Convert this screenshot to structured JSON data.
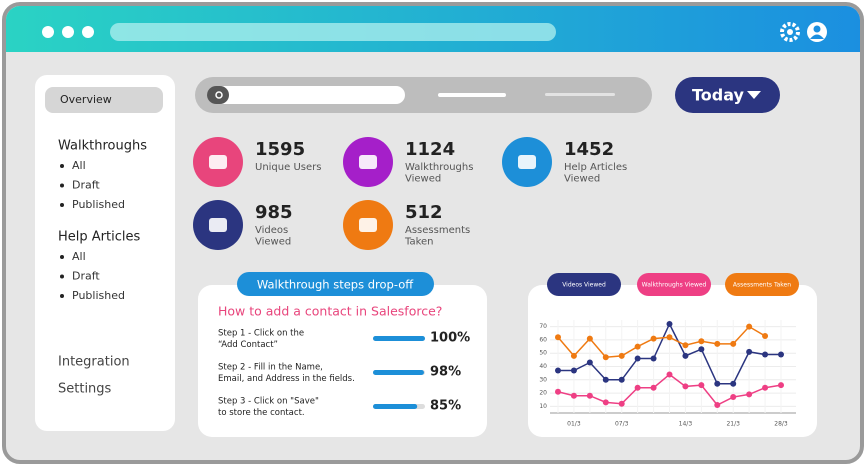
{
  "sidebar": {
    "active": "Overview",
    "sections": [
      {
        "title": "Walkthroughs",
        "items": [
          "All",
          "Draft",
          "Published"
        ]
      },
      {
        "title": "Help Articles",
        "items": [
          "All",
          "Draft",
          "Published"
        ]
      }
    ],
    "links": [
      "Integration",
      "Settings"
    ]
  },
  "toolbar": {
    "date_button": "Today"
  },
  "stats": [
    {
      "value": "1595",
      "label_lines": [
        "Unique Users"
      ],
      "color": "#e8457c"
    },
    {
      "value": "1124",
      "label_lines": [
        "Walkthroughs",
        "Viewed"
      ],
      "color": "#a51fc9"
    },
    {
      "value": "1452",
      "label_lines": [
        "Help Articles",
        "Viewed"
      ],
      "color": "#1d8fd8"
    },
    {
      "value": "985",
      "label_lines": [
        "Videos",
        "Viewed"
      ],
      "color": "#2b3580"
    },
    {
      "value": "512",
      "label_lines": [
        "Assessments",
        "Taken"
      ],
      "color": "#ef7a12"
    }
  ],
  "dropoff": {
    "tag": "Walkthrough steps drop-off",
    "title": "How to add a contact in Salesforce?",
    "steps": [
      {
        "text_lines": [
          "Step 1 - Click on the",
          "“Add Contact”"
        ],
        "value": 100,
        "value_label": "100%"
      },
      {
        "text_lines": [
          "Step 2 - Fill in the Name,",
          "Email, and Address in the fields."
        ],
        "value": 98,
        "value_label": "98%"
      },
      {
        "text_lines": [
          "Step 3 - Click on \"Save\"",
          "to store the contact."
        ],
        "value": 85,
        "value_label": "85%"
      }
    ]
  },
  "chart_data": {
    "type": "line",
    "categories": [
      null,
      "01/3",
      null,
      null,
      "07/3",
      null,
      null,
      null,
      "14/3",
      null,
      null,
      "21/3",
      null,
      null,
      "28/3"
    ],
    "series": [
      {
        "name": "Videos Viewed",
        "color": "#2b3580",
        "values": [
          37,
          37,
          43,
          30,
          30,
          46,
          46,
          72,
          48,
          53,
          27,
          27,
          51,
          49,
          49
        ]
      },
      {
        "name": "Walkthroughs Viewed",
        "color": "#ee3f84",
        "values": [
          21,
          18,
          18,
          13,
          12,
          24,
          24,
          34,
          25,
          26,
          11,
          17,
          19,
          24,
          26
        ]
      },
      {
        "name": "Assessments Taken",
        "color": "#ef7a12",
        "values": [
          62,
          48,
          61,
          47,
          48,
          55,
          61,
          62,
          56,
          59,
          57,
          57,
          70,
          63,
          null
        ]
      }
    ],
    "ylim": [
      5,
      75
    ],
    "yticks": [
      10,
      20,
      30,
      40,
      50,
      60,
      70
    ],
    "grid": true
  }
}
